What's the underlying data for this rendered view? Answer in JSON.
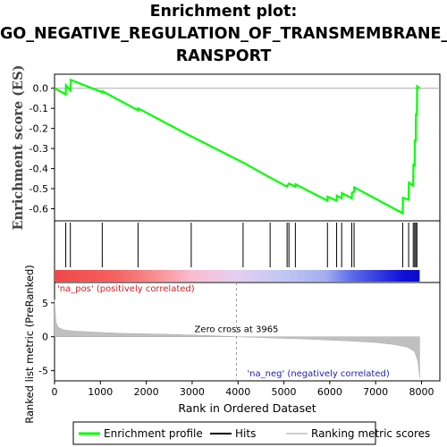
{
  "title_lines": [
    "Enrichment plot:",
    "GO_NEGATIVE_REGULATION_OF_TRANSMEMBRANE_T",
    "RANSPORT"
  ],
  "chart_data": {
    "type": "line",
    "title": "Enrichment plot: GO_NEGATIVE_REGULATION_OF_TRANSMEMBRANE_TRANSPORT",
    "x_range": [
      0,
      8400
    ],
    "x_ticks": [
      0,
      1000,
      2000,
      3000,
      4000,
      5000,
      6000,
      7000,
      8000
    ],
    "xlabel": "Rank in Ordered Dataset",
    "es_panel": {
      "ylabel": "Enrichment score (ES)",
      "ylim": [
        -0.66,
        0.07
      ],
      "y_ticks": [
        0.0,
        -0.1,
        -0.2,
        -0.3,
        -0.4,
        -0.5,
        -0.6
      ],
      "y_tick_labels": [
        "0.0",
        "-0.1",
        "-0.2",
        "-0.3",
        "-0.4",
        "-0.5",
        "-0.6"
      ],
      "series": [
        {
          "name": "Enrichment profile",
          "color": "#00ff00",
          "x": [
            0,
            245,
            250,
            345,
            350,
            1040,
            1045,
            1820,
            1825,
            2980,
            2985,
            4110,
            4115,
            4700,
            4705,
            5070,
            5075,
            5110,
            5115,
            5250,
            5255,
            5950,
            5955,
            6150,
            6155,
            6260,
            6265,
            6480,
            6485,
            6530,
            6535,
            7590,
            7595,
            7720,
            7725,
            7820,
            7825,
            7850,
            7855,
            7875,
            7880,
            7900,
            7905,
            7960
          ],
          "y": [
            0.0,
            -0.03,
            0.015,
            -0.01,
            0.042,
            -0.02,
            -0.015,
            -0.11,
            -0.1,
            -0.24,
            -0.24,
            -0.37,
            -0.37,
            -0.445,
            -0.445,
            -0.49,
            -0.485,
            -0.475,
            -0.475,
            -0.49,
            -0.478,
            -0.56,
            -0.54,
            -0.56,
            -0.535,
            -0.548,
            -0.522,
            -0.548,
            -0.52,
            -0.515,
            -0.493,
            -0.622,
            -0.545,
            -0.555,
            -0.47,
            -0.485,
            -0.375,
            -0.39,
            -0.255,
            -0.265,
            -0.125,
            -0.135,
            0.01,
            0.0
          ]
        }
      ]
    },
    "hits": [
      245,
      345,
      1040,
      1820,
      2980,
      4110,
      4700,
      5070,
      5110,
      5250,
      5950,
      6150,
      6260,
      6480,
      6530,
      7590,
      7720,
      7820,
      7850,
      7875,
      7900
    ],
    "heat_bar": {
      "stops": [
        {
          "x": 0,
          "color": "#f04848"
        },
        {
          "x": 1300,
          "color": "#f46060"
        },
        {
          "x": 2150,
          "color": "#f88c8c"
        },
        {
          "x": 3000,
          "color": "#fbbcd2"
        },
        {
          "x": 3965,
          "color": "#e4d0f0"
        },
        {
          "x": 5000,
          "color": "#c2c6f4"
        },
        {
          "x": 5900,
          "color": "#a4aef0"
        },
        {
          "x": 6500,
          "color": "#5a6ae8"
        },
        {
          "x": 7600,
          "color": "#1010d8"
        },
        {
          "x": 7960,
          "color": "#0a0ac8"
        }
      ],
      "pos_label": "'na_pos' (positively correlated)",
      "neg_label": "'na_neg' (negatively correlated)",
      "pos_color": "#d02020",
      "neg_color": "#2020c0"
    },
    "metric_panel": {
      "ylabel": "Ranked list metric (PreRanked)",
      "ylim": [
        -6.5,
        8.0
      ],
      "y_ticks": [
        5,
        0,
        -5
      ],
      "y_tick_labels": [
        "5",
        "0",
        "-5"
      ],
      "zero_cross": 3965,
      "zero_cross_label": "Zero cross at 3965",
      "n": 7960,
      "x": [
        0,
        30,
        80,
        200,
        400,
        800,
        1500,
        2500,
        3500,
        3965,
        4500,
        5500,
        6500,
        7000,
        7400,
        7700,
        7850,
        7920,
        7960
      ],
      "y": [
        5.5,
        2.2,
        1.4,
        1.0,
        0.85,
        0.7,
        0.5,
        0.35,
        0.15,
        0.0,
        -0.12,
        -0.35,
        -0.65,
        -0.85,
        -1.15,
        -1.55,
        -2.2,
        -3.6,
        -6.0
      ]
    },
    "legend": [
      {
        "label": "Enrichment profile",
        "color": "#00ff00"
      },
      {
        "label": "Hits",
        "color": "#000000"
      },
      {
        "label": "Ranking metric scores",
        "color": "#c0c0c0"
      }
    ]
  }
}
